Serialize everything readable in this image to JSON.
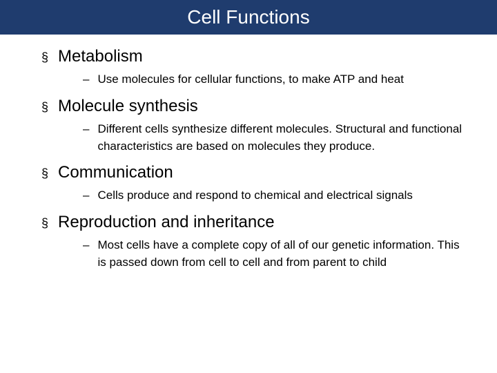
{
  "colors": {
    "header_bg": "#1f3c6e",
    "header_text": "#ffffff",
    "body_text": "#000000",
    "body_bg": "#ffffff"
  },
  "typography": {
    "title_fontsize": 28,
    "section_fontsize": 24,
    "sub_fontsize": 17,
    "font_family": "Arial"
  },
  "title": "Cell Functions",
  "bullet_glyph": "§",
  "dash_glyph": "–",
  "sections": [
    {
      "heading": "Metabolism",
      "sub": "Use molecules for cellular functions, to make ATP and heat"
    },
    {
      "heading": "Molecule synthesis",
      "sub": "Different cells synthesize different molecules.  Structural and functional characteristics are based on molecules they produce."
    },
    {
      "heading": "Communication",
      "sub": "Cells produce and respond to chemical and electrical signals"
    },
    {
      "heading": "Reproduction and inheritance",
      "sub": "Most cells have a complete copy of all of our genetic information.  This is passed down from cell to cell and from parent to child"
    }
  ]
}
